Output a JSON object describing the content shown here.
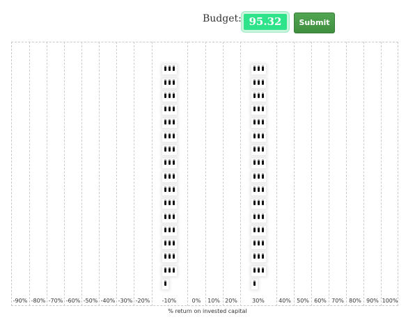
{
  "budget": {
    "label": "Budget:",
    "value": "95.32"
  },
  "submit": {
    "label": "Submit"
  },
  "axis": {
    "title": "% return on invested capital",
    "ticks": [
      "-90%",
      "-80%",
      "-70%",
      "-60%",
      "-50%",
      "-40%",
      "-30%",
      "-20%",
      "-10%",
      "0%",
      "10%",
      "20%",
      "30%",
      "40%",
      "50%",
      "60%",
      "70%",
      "80%",
      "90%",
      "100%"
    ]
  },
  "allocations": [
    {
      "bin": "-10%",
      "full_rows": 16,
      "last_row_chips": 1
    },
    {
      "bin": "30%",
      "full_rows": 16,
      "last_row_chips": 1
    }
  ]
}
